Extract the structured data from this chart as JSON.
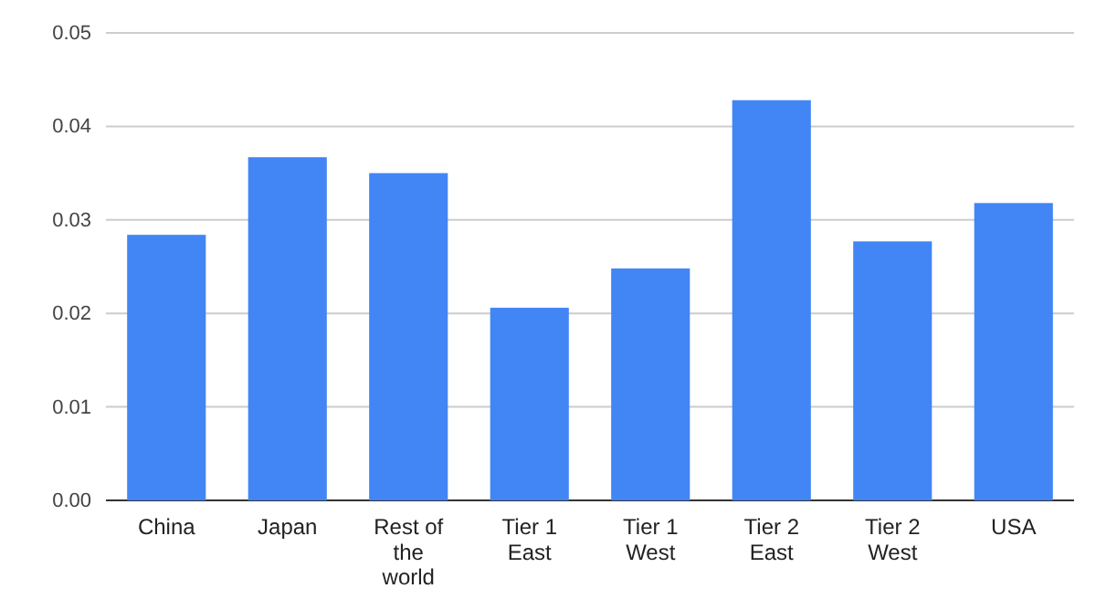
{
  "chart_data": {
    "type": "bar",
    "categories": [
      "China",
      "Japan",
      "Rest of the world",
      "Tier 1 East",
      "Tier 1 West",
      "Tier 2 East",
      "Tier 2 West",
      "USA"
    ],
    "values": [
      0.0284,
      0.0367,
      0.035,
      0.0206,
      0.0248,
      0.0428,
      0.0277,
      0.0318
    ],
    "color": "#4285f4",
    "ylim": [
      0,
      0.05
    ],
    "yticks": [
      {
        "value": 0,
        "label": "0.00"
      },
      {
        "value": 0.01,
        "label": "0.01"
      },
      {
        "value": 0.02,
        "label": "0.02"
      },
      {
        "value": 0.03,
        "label": "0.03"
      },
      {
        "value": 0.04,
        "label": "0.04"
      },
      {
        "value": 0.05,
        "label": "0.05"
      }
    ],
    "grid": "y"
  }
}
